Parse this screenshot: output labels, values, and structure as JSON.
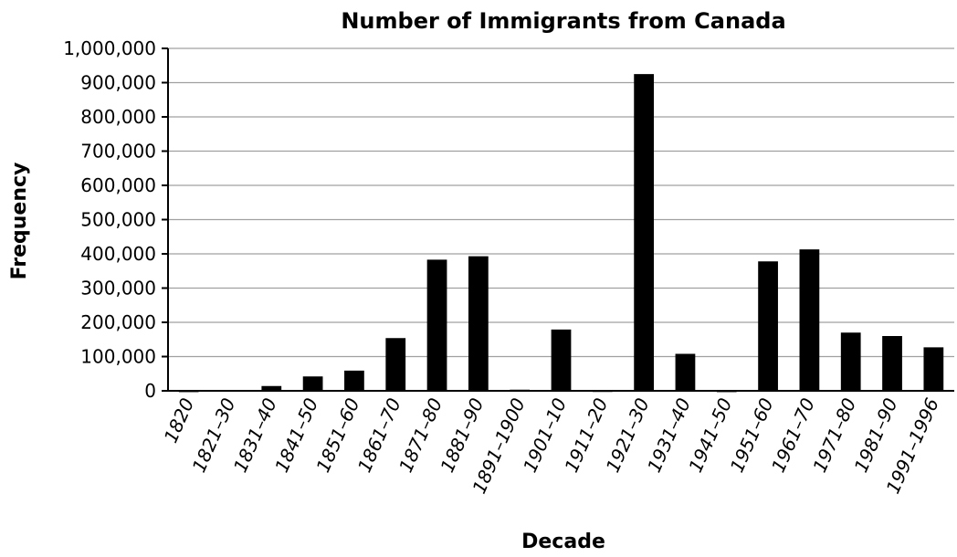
{
  "chart_data": {
    "type": "bar",
    "title": "Number of Immigrants from Canada",
    "xlabel": "Decade",
    "ylabel": "Frequency",
    "ylim": [
      0,
      1000000
    ],
    "ytick_labels": [
      "0",
      "100,000",
      "200,000",
      "300,000",
      "400,000",
      "500,000",
      "600,000",
      "700,000",
      "800,000",
      "900,000",
      "1,000,000"
    ],
    "grid": true,
    "categories": [
      "1820",
      "1821–30",
      "1831–40",
      "1841–50",
      "1851–60",
      "1861–70",
      "1871–80",
      "1881–90",
      "1891–1900",
      "1901–10",
      "1911–20",
      "1921–30",
      "1931–40",
      "1941–50",
      "1951–60",
      "1961–70",
      "1971–80",
      "1981–90",
      "1991–1996"
    ],
    "values": [
      200,
      2300,
      14000,
      42000,
      59000,
      154000,
      383000,
      393000,
      3300,
      179000,
      700,
      925000,
      108000,
      200,
      378000,
      413000,
      170000,
      160000,
      127000
    ],
    "bar_color": "#000000",
    "grid_color": "#a0a0a0"
  }
}
